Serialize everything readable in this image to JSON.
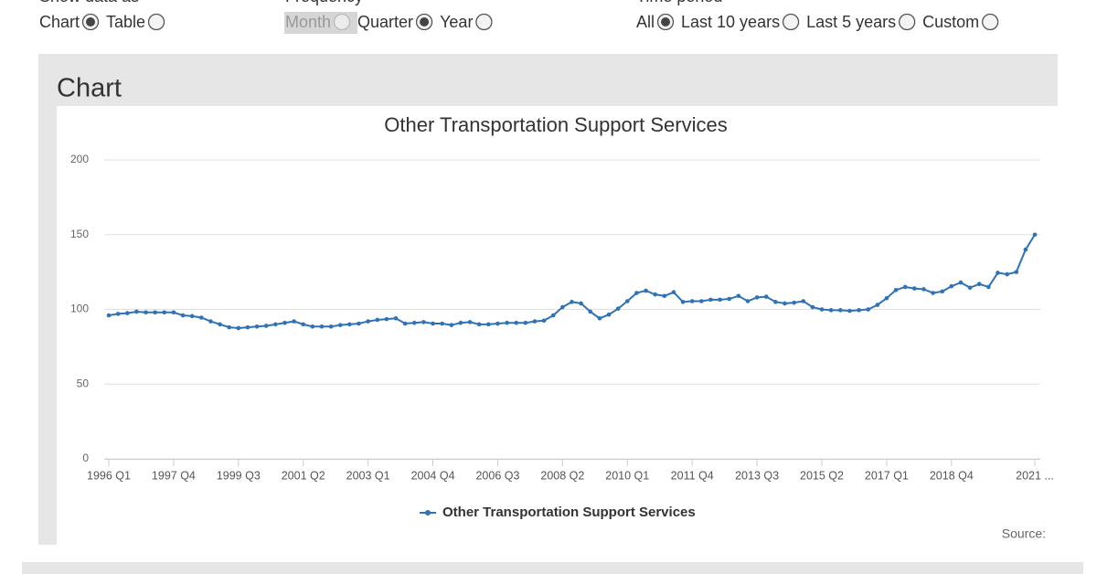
{
  "controls": [
    {
      "label": "Show data as",
      "options": [
        "Chart",
        "Table"
      ],
      "selected": 0
    },
    {
      "label": "Frequency",
      "options": [
        "Month",
        "Quarter",
        "Year"
      ],
      "selected": 1,
      "disabled": 0
    },
    {
      "label": "Time period",
      "options": [
        "All",
        "Last 10 years",
        "Last 5 years",
        "Custom"
      ],
      "selected": 0
    }
  ],
  "panel_title": "Chart",
  "source": "Source:",
  "chart_data": {
    "type": "line",
    "title": "Other Transportation Support Services",
    "categories": [
      "1996 Q1",
      null,
      null,
      null,
      null,
      null,
      null,
      "1997 Q4",
      null,
      null,
      null,
      null,
      null,
      null,
      "1999 Q3",
      null,
      null,
      null,
      null,
      null,
      null,
      "2001 Q2",
      null,
      null,
      null,
      null,
      null,
      null,
      "2003 Q1",
      null,
      null,
      null,
      null,
      null,
      null,
      "2004 Q4",
      null,
      null,
      null,
      null,
      null,
      null,
      "2006 Q3",
      null,
      null,
      null,
      null,
      null,
      null,
      "2008 Q2",
      null,
      null,
      null,
      null,
      null,
      null,
      "2010 Q1",
      null,
      null,
      null,
      null,
      null,
      null,
      "2011 Q4",
      null,
      null,
      null,
      null,
      null,
      null,
      "2013 Q3",
      null,
      null,
      null,
      null,
      null,
      null,
      "2015 Q2",
      null,
      null,
      null,
      null,
      null,
      null,
      "2017 Q1",
      null,
      null,
      null,
      null,
      null,
      null,
      "2018 Q4",
      null,
      null,
      null,
      null,
      null,
      null,
      null,
      null,
      "2021 ..."
    ],
    "series": [
      {
        "name": "Other Transportation Support Services",
        "color": "#2f72b5",
        "values": [
          96,
          97,
          97.5,
          98.5,
          98,
          98,
          98,
          98,
          96,
          95.5,
          94.5,
          92,
          90,
          88,
          87.5,
          88,
          88.5,
          89,
          90,
          91,
          92,
          90,
          88.5,
          88.5,
          88.5,
          89.5,
          90,
          90.5,
          92,
          93,
          93.5,
          94,
          90.5,
          91,
          91.5,
          90.5,
          90.5,
          89.5,
          91,
          91.5,
          90,
          90,
          90.5,
          91,
          91,
          91,
          92,
          92.5,
          96,
          101.5,
          105,
          104,
          98.5,
          94,
          96.5,
          100.5,
          105.5,
          111,
          112.5,
          110,
          109,
          111.5,
          105,
          105.5,
          105.5,
          106.5,
          106.5,
          107,
          109,
          105.5,
          108,
          108.5,
          105,
          104,
          104.5,
          105.5,
          101.5,
          100,
          99.5,
          99.5,
          99,
          99.5,
          100,
          103,
          107.5,
          113,
          115,
          114,
          113.5,
          111,
          112,
          115.5,
          118,
          114.5,
          117,
          115,
          124.5,
          123.5,
          125,
          140,
          150
        ]
      }
    ],
    "ylim": [
      0,
      200
    ],
    "yticks": [
      0,
      50,
      100,
      150,
      200
    ],
    "grid": true,
    "legend": "bottom"
  }
}
